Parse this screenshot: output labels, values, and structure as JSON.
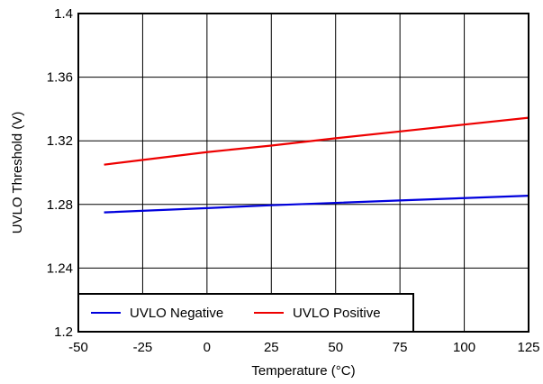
{
  "chart_data": {
    "type": "line",
    "xlabel": "Temperature (°C)",
    "ylabel": "UVLO Threshold (V)",
    "xlim": [
      -50,
      125
    ],
    "ylim": [
      1.2,
      1.4
    ],
    "x_ticks": [
      "-50",
      "-25",
      "0",
      "25",
      "50",
      "75",
      "100",
      "125"
    ],
    "y_ticks": [
      "1.2",
      "1.24",
      "1.28",
      "1.32",
      "1.36",
      "1.4"
    ],
    "x_tick_values": [
      -50,
      -25,
      0,
      25,
      50,
      75,
      100,
      125
    ],
    "y_tick_values": [
      1.2,
      1.24,
      1.28,
      1.32,
      1.36,
      1.4
    ],
    "grid": true,
    "legend_position": "bottom-left",
    "series": [
      {
        "name": "UVLO Negative",
        "color": "#0000dd",
        "x": [
          -40,
          0,
          25,
          50,
          75,
          100,
          125
        ],
        "y": [
          1.275,
          1.2777,
          1.2795,
          1.281,
          1.2825,
          1.284,
          1.2855
        ]
      },
      {
        "name": "UVLO Positive",
        "color": "#ee0000",
        "x": [
          -40,
          0,
          25,
          50,
          75,
          100,
          125
        ],
        "y": [
          1.305,
          1.3129,
          1.317,
          1.3216,
          1.3259,
          1.3302,
          1.3345
        ]
      }
    ]
  }
}
